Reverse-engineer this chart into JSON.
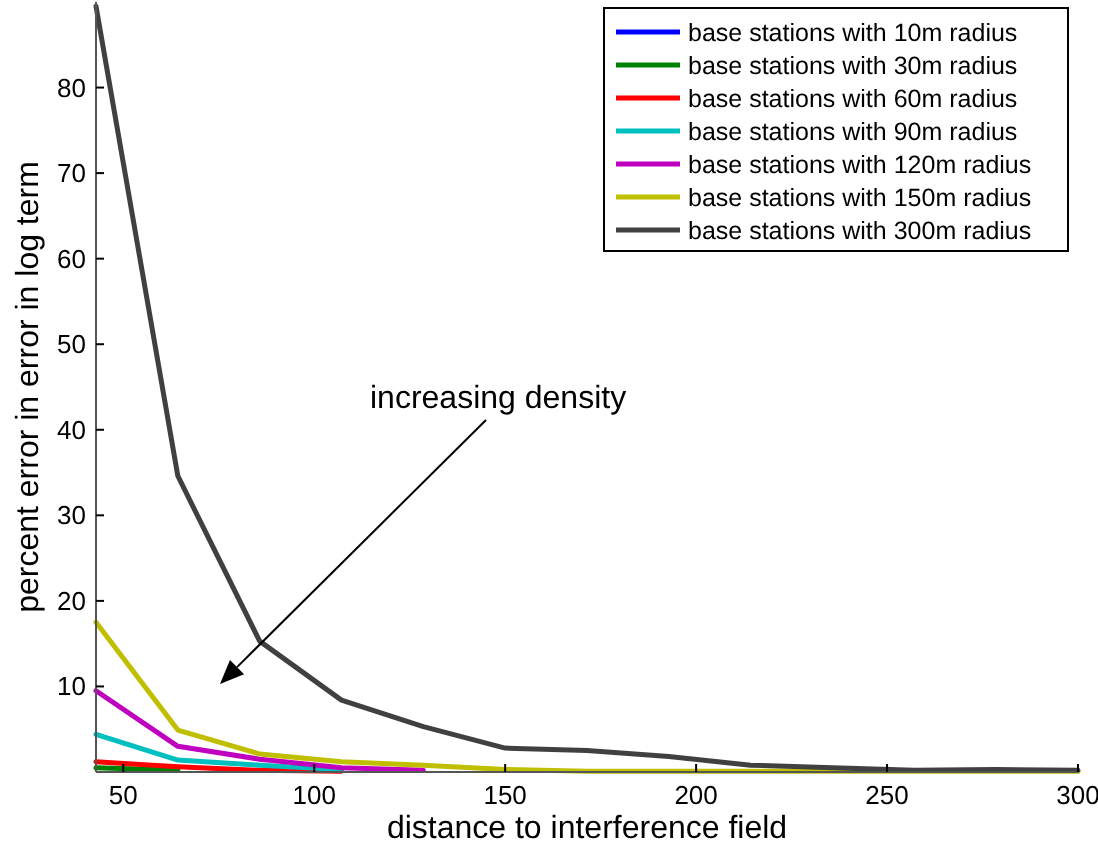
{
  "chart_data": {
    "type": "line",
    "xlabel": "distance to interference field",
    "ylabel": "percent error in error in log term",
    "x": [
      42.86,
      64.29,
      85.71,
      107.14,
      128.57,
      150,
      171.43,
      192.86,
      214.29,
      235.71,
      257.14,
      278.57,
      300
    ],
    "xlim": [
      42.86,
      300
    ],
    "xticks": [
      50,
      100,
      150,
      200,
      250,
      300
    ],
    "ylim": [
      0,
      90
    ],
    "yticks": [
      10,
      20,
      30,
      40,
      50,
      60,
      70,
      80
    ],
    "grid": false,
    "legend": "top right",
    "line_style": "solid",
    "marker": "none",
    "series": [
      {
        "name": "base stations with 10m radius",
        "color": "#0000ff",
        "values": [
          null,
          null,
          null,
          null,
          null,
          null,
          null,
          null,
          null,
          null,
          null,
          null,
          null
        ]
      },
      {
        "name": "base stations with 30m radius",
        "color": "#008000",
        "values": [
          0.5,
          0.2,
          null,
          null,
          null,
          null,
          null,
          null,
          null,
          null,
          null,
          null,
          null
        ]
      },
      {
        "name": "base stations with 60m radius",
        "color": "#ff0000",
        "values": [
          1.2,
          0.6,
          0.2,
          0.1,
          null,
          null,
          null,
          null,
          null,
          null,
          null,
          null,
          null
        ]
      },
      {
        "name": "base stations with 90m radius",
        "color": "#00bfbf",
        "values": [
          4.4,
          1.4,
          0.8,
          0.3,
          null,
          null,
          null,
          null,
          null,
          null,
          null,
          null,
          null
        ]
      },
      {
        "name": "base stations with 120m radius",
        "color": "#bf00bf",
        "values": [
          9.5,
          3.0,
          1.5,
          0.5,
          0.2,
          null,
          null,
          null,
          null,
          null,
          null,
          null,
          null
        ]
      },
      {
        "name": "base stations with 150m radius",
        "color": "#bfbf00",
        "values": [
          17.5,
          4.9,
          2.1,
          1.2,
          0.8,
          0.3,
          0.1,
          0.1,
          0.1,
          0.1,
          0.1,
          0.1,
          0.1
        ]
      },
      {
        "name": "base stations with 300m radius",
        "color": "#404040",
        "values": [
          89.5,
          34.6,
          15.3,
          8.4,
          5.3,
          2.8,
          2.5,
          1.8,
          0.8,
          0.5,
          0.2,
          0.3,
          0.2
        ]
      }
    ],
    "annotations": [
      "increasing density"
    ]
  }
}
